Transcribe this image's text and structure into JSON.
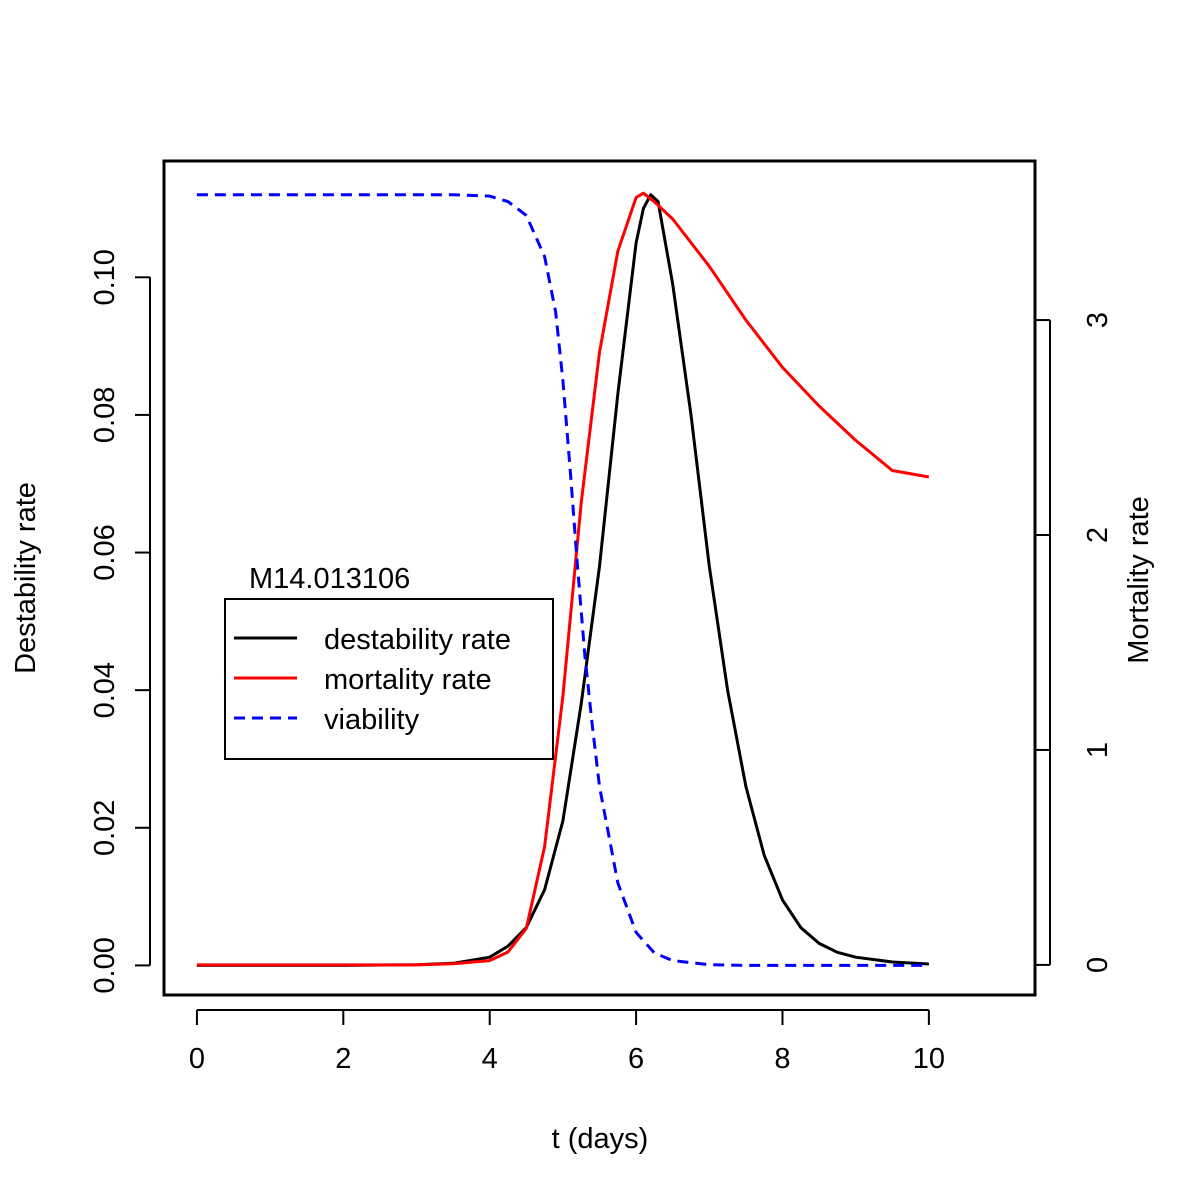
{
  "chart_data": {
    "type": "line",
    "annotation": "M14.013106",
    "xlabel": "t (days)",
    "ylabel_left": "Destability rate",
    "ylabel_right": "Mortality rate",
    "xlim": [
      -0.45,
      11.45
    ],
    "ylim_left": [
      -0.0043,
      0.1169
    ],
    "ylim_right": [
      -0.14,
      3.74
    ],
    "x_ticks": [
      0,
      2,
      4,
      6,
      8,
      10
    ],
    "y_left_ticks": [
      0.0,
      0.02,
      0.04,
      0.06,
      0.08,
      0.1
    ],
    "y_left_tick_labels": [
      "0.00",
      "0.02",
      "0.04",
      "0.06",
      "0.08",
      "0.10"
    ],
    "y_right_ticks": [
      0,
      1,
      2,
      3
    ],
    "grid": false,
    "legend_position": "left-middle",
    "series": [
      {
        "name": "destability rate",
        "axis": "left",
        "color": "#000000",
        "dash": "solid",
        "x": [
          0,
          1,
          2,
          3,
          3.5,
          4,
          4.25,
          4.5,
          4.75,
          5,
          5.25,
          5.5,
          5.75,
          6,
          6.1,
          6.2,
          6.3,
          6.5,
          6.75,
          7,
          7.25,
          7.5,
          7.75,
          8,
          8.25,
          8.5,
          8.75,
          9,
          9.5,
          10
        ],
        "y": [
          0,
          0,
          0,
          0.0001,
          0.0003,
          0.0012,
          0.0028,
          0.0055,
          0.011,
          0.021,
          0.038,
          0.058,
          0.083,
          0.105,
          0.11,
          0.112,
          0.111,
          0.099,
          0.08,
          0.058,
          0.04,
          0.026,
          0.016,
          0.0095,
          0.0055,
          0.0032,
          0.0019,
          0.0012,
          0.0005,
          0.0002
        ]
      },
      {
        "name": "mortality rate",
        "axis": "right",
        "color": "#ff0000",
        "dash": "solid",
        "x": [
          0,
          1,
          2,
          3,
          3.5,
          4,
          4.25,
          4.5,
          4.75,
          5,
          5.25,
          5.5,
          5.75,
          6,
          6.1,
          6.25,
          6.5,
          7,
          7.5,
          8,
          8.5,
          9,
          9.5,
          10
        ],
        "y": [
          0,
          0,
          0,
          0,
          0.005,
          0.02,
          0.06,
          0.17,
          0.55,
          1.25,
          2.15,
          2.85,
          3.32,
          3.57,
          3.59,
          3.55,
          3.47,
          3.25,
          3.0,
          2.78,
          2.6,
          2.44,
          2.3,
          2.27
        ]
      },
      {
        "name": "viability",
        "axis": "left",
        "color": "#0000ff",
        "dash": "dashed",
        "x": [
          0,
          1,
          2,
          3,
          3.5,
          4,
          4.25,
          4.5,
          4.75,
          4.9,
          5,
          5.1,
          5.2,
          5.3,
          5.4,
          5.5,
          5.75,
          6,
          6.25,
          6.5,
          7,
          7.5,
          8,
          9,
          10
        ],
        "y": [
          0.112,
          0.112,
          0.112,
          0.112,
          0.112,
          0.1118,
          0.111,
          0.109,
          0.103,
          0.095,
          0.085,
          0.072,
          0.058,
          0.045,
          0.035,
          0.026,
          0.012,
          0.0048,
          0.0018,
          0.0007,
          0.0001,
          0,
          0,
          0,
          0
        ]
      }
    ]
  }
}
